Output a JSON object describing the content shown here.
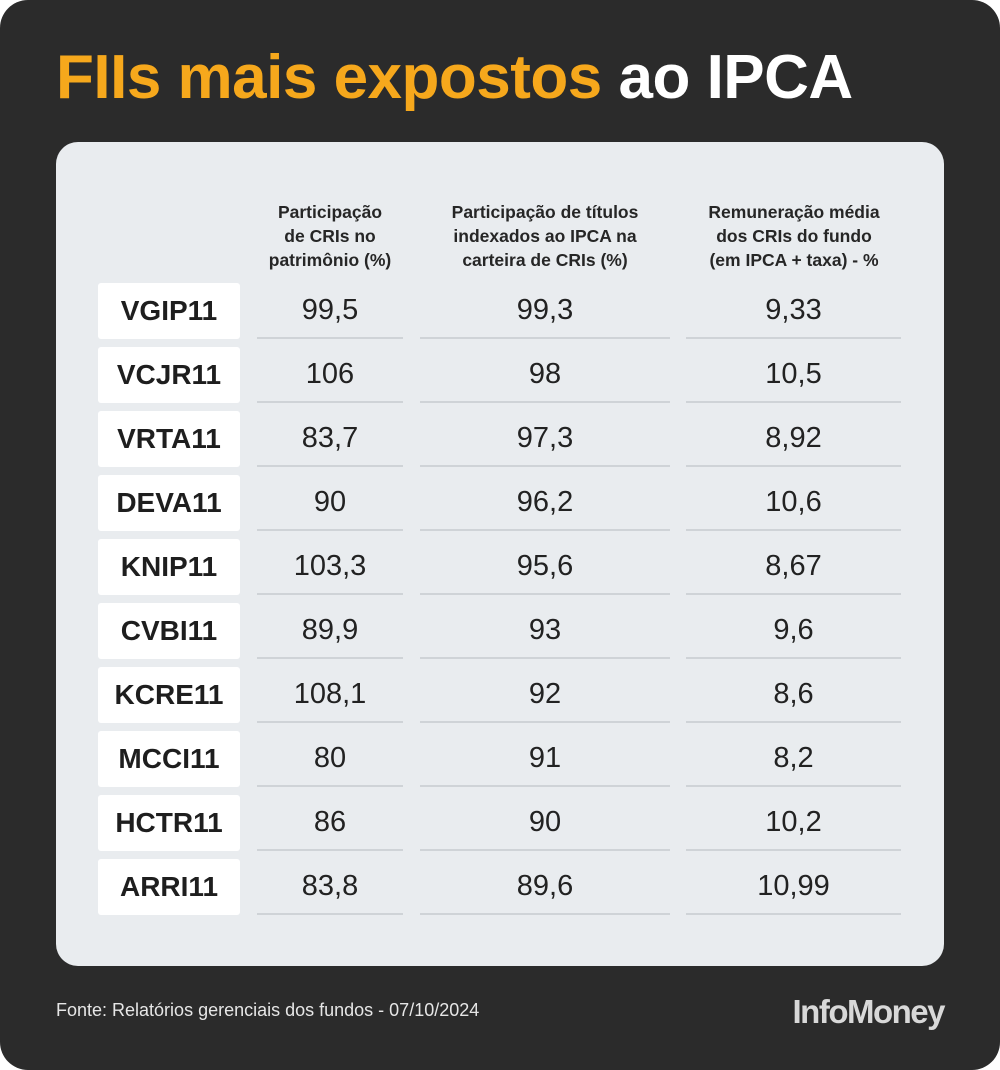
{
  "title": {
    "highlight": "FIIs mais expostos",
    "rest": "ao IPCA"
  },
  "colors": {
    "accent": "#f6a81c",
    "background": "#2b2b2b",
    "panel": "#e9ecef"
  },
  "columns": [
    [
      "Participação",
      "de CRIs no",
      "patrimônio (%)"
    ],
    [
      "Participação de títulos",
      "indexados ao IPCA na",
      "carteira de CRIs (%)"
    ],
    [
      "Remuneração média",
      "dos CRIs do fundo",
      "(em IPCA + taxa) - %"
    ]
  ],
  "chart_data": {
    "type": "table",
    "rows": [
      {
        "ticker": "VGIP11",
        "values": [
          "99,5",
          "99,3",
          "9,33"
        ]
      },
      {
        "ticker": "VCJR11",
        "values": [
          "106",
          "98",
          "10,5"
        ]
      },
      {
        "ticker": "VRTA11",
        "values": [
          "83,7",
          "97,3",
          "8,92"
        ]
      },
      {
        "ticker": "DEVA11",
        "values": [
          "90",
          "96,2",
          "10,6"
        ]
      },
      {
        "ticker": "KNIP11",
        "values": [
          "103,3",
          "95,6",
          "8,67"
        ]
      },
      {
        "ticker": "CVBI11",
        "values": [
          "89,9",
          "93",
          "9,6"
        ]
      },
      {
        "ticker": "KCRE11",
        "values": [
          "108,1",
          "92",
          "8,6"
        ]
      },
      {
        "ticker": "MCCI11",
        "values": [
          "80",
          "91",
          "8,2"
        ]
      },
      {
        "ticker": "HCTR11",
        "values": [
          "86",
          "90",
          "10,2"
        ]
      },
      {
        "ticker": "ARRI11",
        "values": [
          "83,8",
          "89,6",
          "10,99"
        ]
      }
    ]
  },
  "footer": {
    "source": "Fonte: Relatórios gerenciais dos fundos - 07/10/2024",
    "logo": "InfoMoney"
  }
}
